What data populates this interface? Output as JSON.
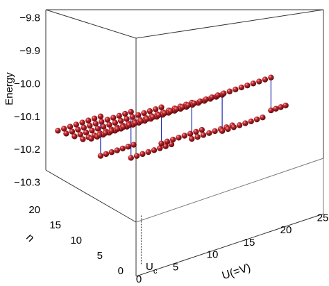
{
  "chart_data": {
    "type": "scatter",
    "subtype": "3d-scatter-with-lines",
    "title": "",
    "xlabel": "U(=V)",
    "ylabel": "n",
    "zlabel": "Energy",
    "xlim": [
      0,
      26
    ],
    "ylim": [
      0,
      22
    ],
    "zlim": [
      -10.35,
      -9.78
    ],
    "x_ticks": [
      "0",
      "5",
      "10",
      "15",
      "20",
      "25"
    ],
    "y_ticks": [
      "0",
      "5",
      "10",
      "15",
      "20"
    ],
    "z_ticks": [
      "-9.8",
      "-9.9",
      "-10.0",
      "-10.1",
      "-10.2",
      "-10.3"
    ],
    "special_tick": {
      "text": "U",
      "subscript": "c",
      "x": 0.7
    },
    "grid": false,
    "box": true,
    "marker_color": "#9b1118",
    "line_color": "#1f2bb0",
    "series": [
      {
        "n": 20,
        "x": [
          0.7,
          6.5,
          6.5,
          11
        ],
        "y": [
          -10.13,
          -10.13,
          -10.25,
          -10.25
        ]
      },
      {
        "n": 18,
        "x": [
          0.7,
          9.5,
          9.5,
          15
        ],
        "y": [
          -10.12,
          -10.12,
          -10.26,
          -10.26
        ]
      },
      {
        "n": 16,
        "x": [
          0.7,
          12.5,
          12.5,
          18
        ],
        "y": [
          -10.11,
          -10.11,
          -10.22,
          -10.22
        ]
      },
      {
        "n": 14,
        "x": [
          0.7,
          15.5,
          15.5,
          21
        ],
        "y": [
          -10.1,
          -10.1,
          -10.21,
          -10.21
        ]
      },
      {
        "n": 12,
        "x": [
          0.7,
          18.5,
          18.5,
          24
        ],
        "y": [
          -10.08,
          -10.08,
          -10.19,
          -10.19
        ]
      },
      {
        "n": 10,
        "x": [
          0.7,
          24,
          24,
          26
        ],
        "y": [
          -10.05,
          -10.05,
          -10.15,
          -10.15
        ]
      }
    ]
  },
  "labels": {
    "z_axis_label": "Energy",
    "x_axis_label": "U(=V)",
    "y_axis_label": "n",
    "uc_main": "U",
    "uc_sub": "c"
  }
}
